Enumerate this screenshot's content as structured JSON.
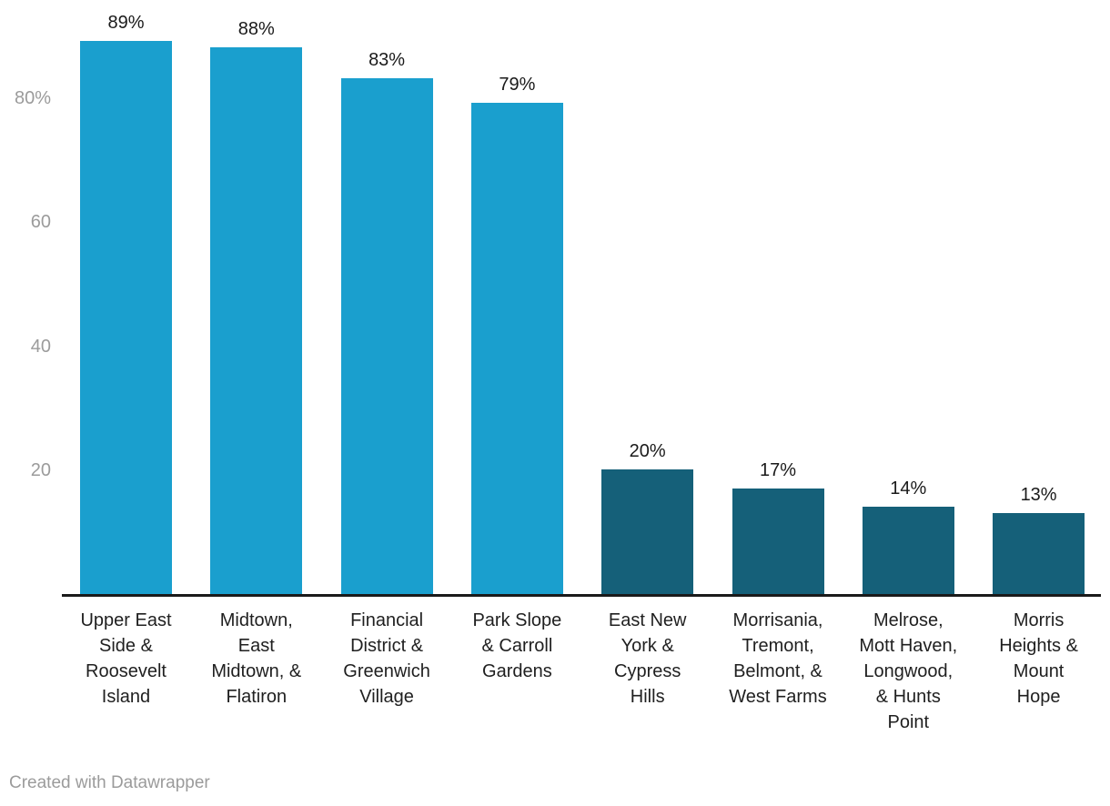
{
  "chart_data": {
    "type": "bar",
    "title": "",
    "xlabel": "",
    "ylabel": "",
    "categories": [
      "Upper East Side & Roosevelt Island",
      "Midtown, East Midtown, & Flatiron",
      "Financial District & Greenwich Village",
      "Park Slope & Carroll Gardens",
      "East New York & Cypress Hills",
      "Morrisania, Tremont, Belmont, & West Farms",
      "Melrose, Mott Haven, Longwood, & Hunts Point",
      "Morris Heights & Mount Hope"
    ],
    "category_display": [
      "Upper East\nSide &\nRoosevelt\nIsland",
      "Midtown,\nEast\nMidtown, &\nFlatiron",
      "Financial\nDistrict &\nGreenwich\nVillage",
      "Park Slope\n& Carroll\nGardens",
      "East New\nYork &\nCypress\nHills",
      "Morrisania,\nTremont,\nBelmont, &\nWest Farms",
      "Melrose,\nMott Haven,\nLongwood,\n& Hunts\nPoint",
      "Morris\nHeights &\nMount\nHope"
    ],
    "values": [
      89,
      88,
      83,
      79,
      20,
      17,
      14,
      13
    ],
    "value_labels": [
      "89%",
      "88%",
      "83%",
      "79%",
      "20%",
      "17%",
      "14%",
      "13%"
    ],
    "bar_colors": [
      "#1A9FCE",
      "#1A9FCE",
      "#1A9FCE",
      "#1A9FCE",
      "#156079",
      "#156079",
      "#156079",
      "#156079"
    ],
    "ylim": [
      0,
      91
    ],
    "yticks": [
      {
        "value": 20,
        "label": "20"
      },
      {
        "value": 40,
        "label": "40"
      },
      {
        "value": 60,
        "label": "60"
      },
      {
        "value": 80,
        "label": "80%"
      }
    ],
    "grid": false,
    "legend": "none"
  },
  "colors": {
    "bar_light": "#1A9FCE",
    "bar_dark": "#156079",
    "axis_tick_text": "#9B9B9B",
    "value_label_text": "#1A1A1A",
    "category_label_text": "#1F1F1F",
    "baseline": "#1A1A1A",
    "background": "#FFFFFF",
    "attribution_text": "#9B9B9B"
  },
  "footer": {
    "attribution": "Created with Datawrapper"
  }
}
